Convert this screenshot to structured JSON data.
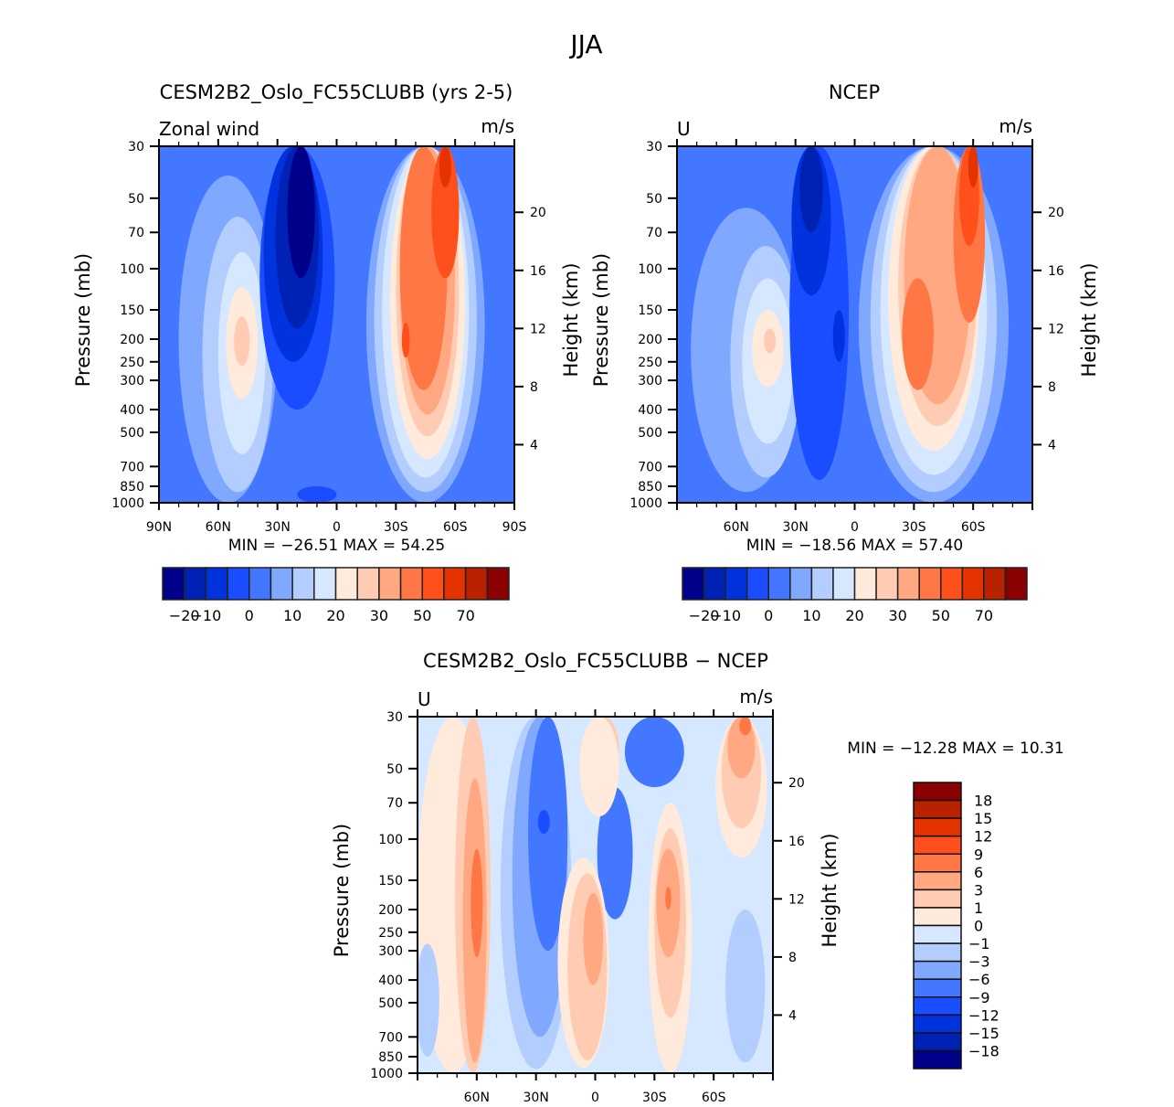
{
  "figure": {
    "main_title": "JJA"
  },
  "chart_data": [
    {
      "id": "model",
      "type": "heatmap",
      "title": "CESM2B2_Oslo_FC55CLUBB (yrs 2-5)",
      "left_label": "Zonal wind",
      "units_label": "m/s",
      "xlabel": "",
      "ylabel": "Pressure (mb)",
      "y2label": "Height (km)",
      "x_ticks": [
        "90N",
        "60N",
        "30N",
        "0",
        "30S",
        "60S",
        "90S"
      ],
      "x_tick_values": [
        90,
        60,
        30,
        0,
        -30,
        -60,
        -90
      ],
      "xlim": [
        90,
        -90
      ],
      "y_ticks": [
        "30",
        "50",
        "70",
        "100",
        "150",
        "200",
        "250",
        "300",
        "400",
        "500",
        "700",
        "850",
        "1000"
      ],
      "y_tick_values": [
        30,
        50,
        70,
        100,
        150,
        200,
        250,
        300,
        400,
        500,
        700,
        850,
        1000
      ],
      "ylim": [
        1000,
        30
      ],
      "y2_ticks": [
        "4",
        "8",
        "12",
        "16",
        "20"
      ],
      "stats": "MIN = −26.51   MAX =  54.25",
      "min": -26.51,
      "max": 54.25,
      "colorbar": {
        "orientation": "horizontal",
        "labels": [
          "−20",
          "−10",
          "0",
          "10",
          "20",
          "30",
          "50",
          "70"
        ]
      },
      "background_level": 4,
      "features": [
        {
          "lat": 90,
          "lat_w": 30,
          "p_top": 30,
          "p_bot": 55,
          "level": 4
        },
        {
          "lat": 55,
          "lat_w": 50,
          "p_top": 40,
          "p_bot": 1000,
          "level": 5
        },
        {
          "lat": 50,
          "lat_w": 36,
          "p_top": 60,
          "p_bot": 900,
          "level": 6
        },
        {
          "lat": 48,
          "lat_w": 24,
          "p_top": 85,
          "p_bot": 620,
          "level": 7
        },
        {
          "lat": 48,
          "lat_w": 16,
          "p_top": 120,
          "p_bot": 360,
          "level": 8
        },
        {
          "lat": 48,
          "lat_w": 8,
          "p_top": 160,
          "p_bot": 260,
          "level": 9
        },
        {
          "lat": 20,
          "lat_w": 38,
          "p_top": 30,
          "p_bot": 400,
          "level": 3
        },
        {
          "lat": 22,
          "lat_w": 30,
          "p_top": 30,
          "p_bot": 250,
          "level": 2
        },
        {
          "lat": 20,
          "lat_w": 22,
          "p_top": 30,
          "p_bot": 180,
          "level": 1
        },
        {
          "lat": 18,
          "lat_w": 14,
          "p_top": 30,
          "p_bot": 110,
          "level": 0
        },
        {
          "lat": 10,
          "lat_w": 20,
          "p_top": 850,
          "p_bot": 1000,
          "level": 3
        },
        {
          "lat": -45,
          "lat_w": 60,
          "p_top": 30,
          "p_bot": 1000,
          "level": 5
        },
        {
          "lat": -45,
          "lat_w": 52,
          "p_top": 30,
          "p_bot": 900,
          "level": 6
        },
        {
          "lat": -45,
          "lat_w": 44,
          "p_top": 30,
          "p_bot": 780,
          "level": 7
        },
        {
          "lat": -46,
          "lat_w": 38,
          "p_top": 30,
          "p_bot": 650,
          "level": 8
        },
        {
          "lat": -46,
          "lat_w": 32,
          "p_top": 30,
          "p_bot": 520,
          "level": 9
        },
        {
          "lat": -46,
          "lat_w": 28,
          "p_top": 30,
          "p_bot": 420,
          "level": 10
        },
        {
          "lat": -44,
          "lat_w": 24,
          "p_top": 30,
          "p_bot": 330,
          "level": 11
        },
        {
          "lat": -55,
          "lat_w": 14,
          "p_top": 30,
          "p_bot": 110,
          "level": 12
        },
        {
          "lat": -55,
          "lat_w": 6,
          "p_top": 30,
          "p_bot": 45,
          "level": 13
        },
        {
          "lat": -35,
          "lat_w": 4,
          "p_top": 170,
          "p_bot": 240,
          "level": 12
        }
      ]
    },
    {
      "id": "obs",
      "type": "heatmap",
      "title": "NCEP",
      "left_label": "U",
      "units_label": "m/s",
      "xlabel": "",
      "ylabel": "Pressure (mb)",
      "y2label": "Height (km)",
      "x_ticks": [
        "60N",
        "30N",
        "0",
        "30S",
        "60S"
      ],
      "x_tick_values": [
        60,
        30,
        0,
        -30,
        -60
      ],
      "xlim": [
        90,
        -90
      ],
      "y_ticks": [
        "30",
        "50",
        "70",
        "100",
        "150",
        "200",
        "250",
        "300",
        "400",
        "500",
        "700",
        "850",
        "1000"
      ],
      "y_tick_values": [
        30,
        50,
        70,
        100,
        150,
        200,
        250,
        300,
        400,
        500,
        700,
        850,
        1000
      ],
      "ylim": [
        1000,
        30
      ],
      "y2_ticks": [
        "4",
        "8",
        "12",
        "16",
        "20"
      ],
      "stats": "MIN = −18.56   MAX =  57.40",
      "min": -18.56,
      "max": 57.4,
      "colorbar": {
        "orientation": "horizontal",
        "labels": [
          "−20",
          "−10",
          "0",
          "10",
          "20",
          "30",
          "50",
          "70"
        ]
      },
      "background_level": 4,
      "features": [
        {
          "lat": 55,
          "lat_w": 56,
          "p_top": 55,
          "p_bot": 900,
          "level": 5
        },
        {
          "lat": 45,
          "lat_w": 36,
          "p_top": 80,
          "p_bot": 780,
          "level": 6
        },
        {
          "lat": 44,
          "lat_w": 26,
          "p_top": 110,
          "p_bot": 560,
          "level": 7
        },
        {
          "lat": 44,
          "lat_w": 16,
          "p_top": 150,
          "p_bot": 320,
          "level": 8
        },
        {
          "lat": 43,
          "lat_w": 6,
          "p_top": 180,
          "p_bot": 230,
          "level": 9
        },
        {
          "lat": 18,
          "lat_w": 30,
          "p_top": 30,
          "p_bot": 800,
          "level": 3
        },
        {
          "lat": 22,
          "lat_w": 20,
          "p_top": 30,
          "p_bot": 130,
          "level": 2
        },
        {
          "lat": 22,
          "lat_w": 12,
          "p_top": 30,
          "p_bot": 70,
          "level": 1
        },
        {
          "lat": 8,
          "lat_w": 6,
          "p_top": 150,
          "p_bot": 250,
          "level": 2
        },
        {
          "lat": -40,
          "lat_w": 76,
          "p_top": 30,
          "p_bot": 1000,
          "level": 5
        },
        {
          "lat": -40,
          "lat_w": 64,
          "p_top": 30,
          "p_bot": 900,
          "level": 6
        },
        {
          "lat": -40,
          "lat_w": 54,
          "p_top": 30,
          "p_bot": 760,
          "level": 7
        },
        {
          "lat": -40,
          "lat_w": 46,
          "p_top": 30,
          "p_bot": 600,
          "level": 8
        },
        {
          "lat": -42,
          "lat_w": 40,
          "p_top": 30,
          "p_bot": 470,
          "level": 9
        },
        {
          "lat": -42,
          "lat_w": 34,
          "p_top": 30,
          "p_bot": 380,
          "level": 10
        },
        {
          "lat": -32,
          "lat_w": 16,
          "p_top": 110,
          "p_bot": 330,
          "level": 11
        },
        {
          "lat": -58,
          "lat_w": 16,
          "p_top": 30,
          "p_bot": 170,
          "level": 11
        },
        {
          "lat": -58,
          "lat_w": 10,
          "p_top": 30,
          "p_bot": 80,
          "level": 12
        },
        {
          "lat": -60,
          "lat_w": 5,
          "p_top": 30,
          "p_bot": 45,
          "level": 13
        }
      ]
    },
    {
      "id": "diff",
      "type": "heatmap",
      "title": "CESM2B2_Oslo_FC55CLUBB − NCEP",
      "left_label": "U",
      "units_label": "m/s",
      "xlabel": "",
      "ylabel": "Pressure (mb)",
      "y2label": "Height (km)",
      "x_ticks": [
        "60N",
        "30N",
        "0",
        "30S",
        "60S"
      ],
      "x_tick_values": [
        60,
        30,
        0,
        -30,
        -60
      ],
      "xlim": [
        90,
        -90
      ],
      "y_ticks": [
        "30",
        "50",
        "70",
        "100",
        "150",
        "200",
        "250",
        "300",
        "400",
        "500",
        "700",
        "850",
        "1000"
      ],
      "y_tick_values": [
        30,
        50,
        70,
        100,
        150,
        200,
        250,
        300,
        400,
        500,
        700,
        850,
        1000
      ],
      "ylim": [
        1000,
        30
      ],
      "y2_ticks": [
        "4",
        "8",
        "12",
        "16",
        "20"
      ],
      "stats": "MIN = −12.28   MAX =  10.31",
      "min": -12.28,
      "max": 10.31,
      "colorbar": {
        "orientation": "vertical",
        "labels": [
          "18",
          "15",
          "12",
          "9",
          "6",
          "3",
          "1",
          "0",
          "−1",
          "−3",
          "−6",
          "−9",
          "−12",
          "−15",
          "−18"
        ]
      },
      "background_level": 7,
      "features": [
        {
          "lat": 72,
          "lat_w": 36,
          "p_top": 30,
          "p_bot": 1000,
          "level": 8
        },
        {
          "lat": 62,
          "lat_w": 18,
          "p_top": 30,
          "p_bot": 1000,
          "level": 9
        },
        {
          "lat": 61,
          "lat_w": 12,
          "p_top": 55,
          "p_bot": 900,
          "level": 10
        },
        {
          "lat": 60,
          "lat_w": 6,
          "p_top": 110,
          "p_bot": 320,
          "level": 11
        },
        {
          "lat": 85,
          "lat_w": 12,
          "p_top": 280,
          "p_bot": 850,
          "level": 6
        },
        {
          "lat": 30,
          "lat_w": 36,
          "p_top": 30,
          "p_bot": 960,
          "level": 6
        },
        {
          "lat": 28,
          "lat_w": 28,
          "p_top": 30,
          "p_bot": 700,
          "level": 5
        },
        {
          "lat": 24,
          "lat_w": 20,
          "p_top": 30,
          "p_bot": 300,
          "level": 4
        },
        {
          "lat": 26,
          "lat_w": 6,
          "p_top": 75,
          "p_bot": 95,
          "level": 3
        },
        {
          "lat": -10,
          "lat_w": 18,
          "p_top": 60,
          "p_bot": 220,
          "level": 4
        },
        {
          "lat": -30,
          "lat_w": 30,
          "p_top": 30,
          "p_bot": 60,
          "level": 4
        },
        {
          "lat": -4,
          "lat_w": 16,
          "p_top": 30,
          "p_bot": 55,
          "level": 9
        },
        {
          "lat": -2,
          "lat_w": 20,
          "p_top": 30,
          "p_bot": 80,
          "level": 8
        },
        {
          "lat": 6,
          "lat_w": 26,
          "p_top": 120,
          "p_bot": 950,
          "level": 8
        },
        {
          "lat": 4,
          "lat_w": 20,
          "p_top": 140,
          "p_bot": 880,
          "level": 9
        },
        {
          "lat": 1,
          "lat_w": 10,
          "p_top": 170,
          "p_bot": 420,
          "level": 10
        },
        {
          "lat": -38,
          "lat_w": 22,
          "p_top": 70,
          "p_bot": 1000,
          "level": 8
        },
        {
          "lat": -38,
          "lat_w": 16,
          "p_top": 90,
          "p_bot": 580,
          "level": 9
        },
        {
          "lat": -37,
          "lat_w": 12,
          "p_top": 110,
          "p_bot": 320,
          "level": 10
        },
        {
          "lat": -37,
          "lat_w": 3,
          "p_top": 160,
          "p_bot": 200,
          "level": 11
        },
        {
          "lat": -74,
          "lat_w": 26,
          "p_top": 30,
          "p_bot": 120,
          "level": 8
        },
        {
          "lat": -74,
          "lat_w": 20,
          "p_top": 30,
          "p_bot": 90,
          "level": 9
        },
        {
          "lat": -74,
          "lat_w": 14,
          "p_top": 30,
          "p_bot": 55,
          "level": 10
        },
        {
          "lat": -76,
          "lat_w": 6,
          "p_top": 30,
          "p_bot": 36,
          "level": 11
        },
        {
          "lat": -76,
          "lat_w": 20,
          "p_top": 200,
          "p_bot": 900,
          "level": 6
        }
      ]
    }
  ],
  "palette": {
    "colors_low_to_high": [
      "#00008b",
      "#0022b4",
      "#0033dd",
      "#1a4dff",
      "#4477ff",
      "#80a8ff",
      "#b3cdff",
      "#d6e8ff",
      "#ffeadb",
      "#ffccb3",
      "#ffa882",
      "#ff7744",
      "#ff4f1a",
      "#e53300",
      "#b82200",
      "#8b0000"
    ]
  }
}
